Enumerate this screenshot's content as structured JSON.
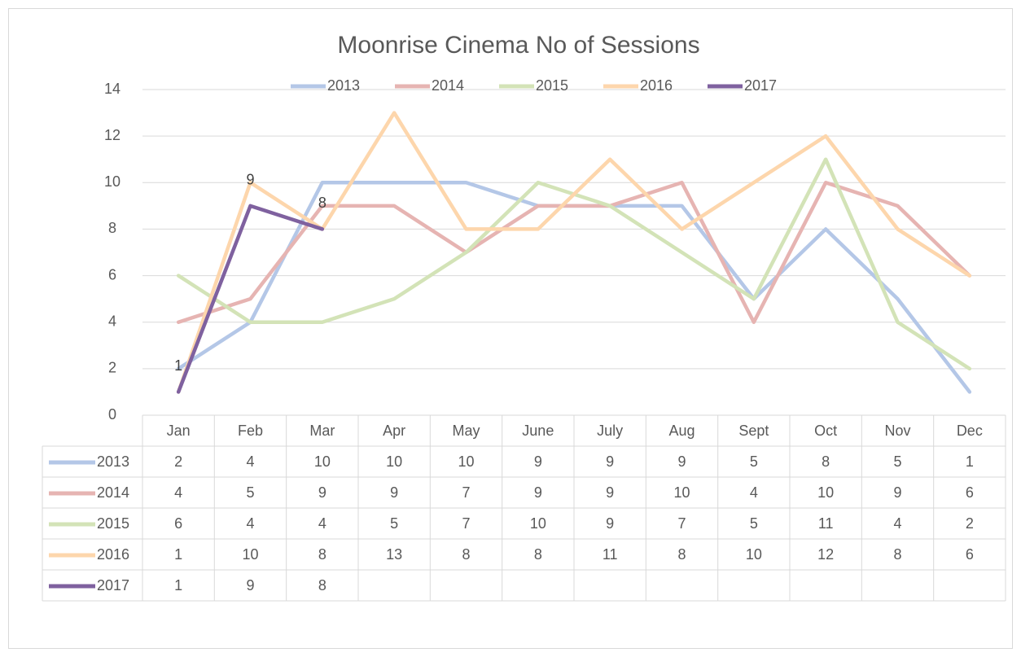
{
  "chart_data": {
    "type": "line",
    "title": "Moonrise Cinema No of Sessions",
    "categories": [
      "Jan",
      "Feb",
      "Mar",
      "Apr",
      "May",
      "June",
      "July",
      "Aug",
      "Sept",
      "Oct",
      "Nov",
      "Dec"
    ],
    "series": [
      {
        "name": "2013",
        "color": "#b4c7e7",
        "values": [
          2,
          4,
          10,
          10,
          10,
          9,
          9,
          9,
          5,
          8,
          5,
          1
        ]
      },
      {
        "name": "2014",
        "color": "#e6b4b2",
        "values": [
          4,
          5,
          9,
          9,
          7,
          9,
          9,
          10,
          4,
          10,
          9,
          6
        ]
      },
      {
        "name": "2015",
        "color": "#d3e3b7",
        "values": [
          6,
          4,
          4,
          5,
          7,
          10,
          9,
          7,
          5,
          11,
          4,
          2
        ]
      },
      {
        "name": "2016",
        "color": "#fdd6ac",
        "values": [
          1,
          10,
          8,
          13,
          8,
          8,
          11,
          8,
          10,
          12,
          8,
          6
        ]
      },
      {
        "name": "2017",
        "color": "#7f619f",
        "values": [
          1,
          9,
          8,
          null,
          null,
          null,
          null,
          null,
          null,
          null,
          null,
          null
        ],
        "data_labels": true
      }
    ],
    "ylim": [
      0,
      14
    ],
    "yticks": [
      0,
      2,
      4,
      6,
      8,
      10,
      12,
      14
    ],
    "grid": true,
    "legend": "top",
    "data_table": true
  }
}
